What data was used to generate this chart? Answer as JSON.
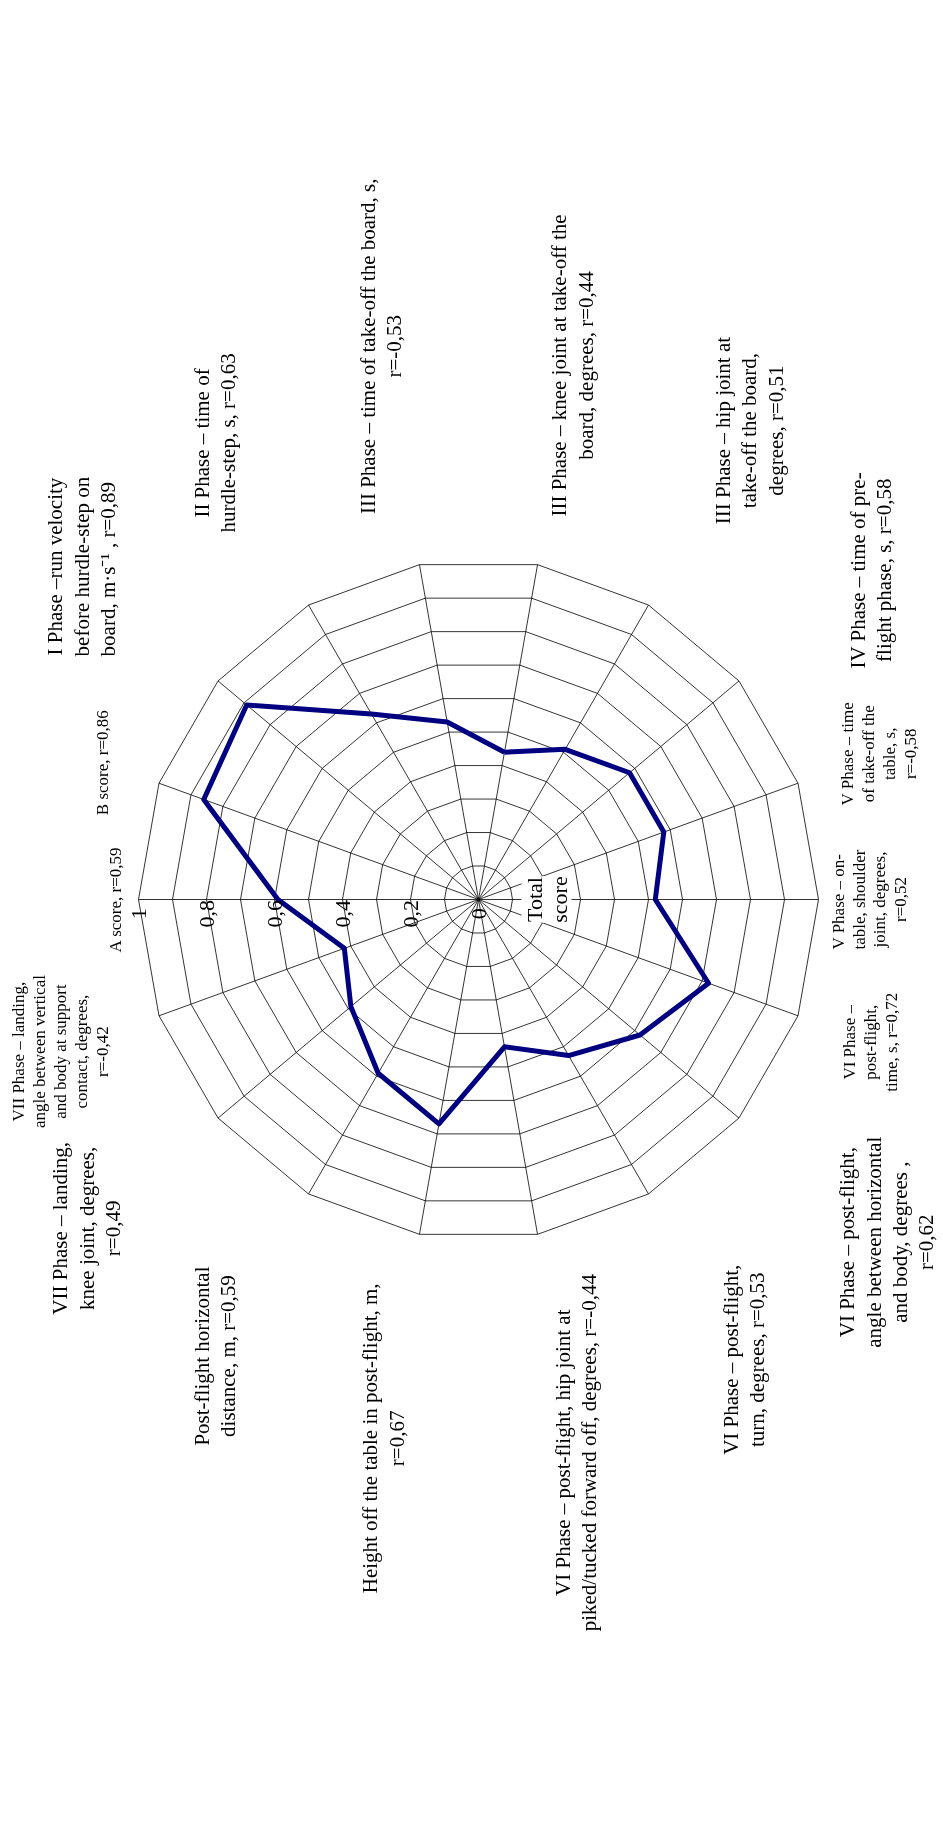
{
  "chart_data": {
    "type": "radar",
    "title": "Total score",
    "categories": [
      "III Phase – knee joint at take-off the board, degrees, r=0,44",
      "III Phase – hip joint at take-off the board, degrees, r=0,51",
      "IV Phase – time of pre-flight phase, s, r=0,58",
      "V Phase – time of take-off the table, s, r=-0,58",
      "V Phase  – on-table, shoulder joint, degrees, r=0,52",
      "VI Phase – post-flight, time, s, r=0,72",
      "VI Phase – post-flight, angle between horizontal and body, degrees , r=0,62",
      "VI Phase – post-flight, turn, degrees, r=0,53",
      "VI Phase – post-flight, hip joint at piked/tucked forward off, degrees, r=-0,44",
      "Height off the table in post-flight, m, r=0,67",
      "Post-flight horizontal distance, m, r=0,59",
      "VII Phase – landing, knee joint, degrees, r=0,49",
      "VII Phase – landing, angle between vertical and body at support contact, degrees, r=-0,42",
      "A score, r=0,59",
      "B score, r=0,86",
      "I Phase –run velocity before hurdle-step on board,  m·s⁻¹ , r=0,89",
      "II Phase – time of hurdle-step, s, r=0,63",
      "III Phase – time of take-off the board, s, r=-0,53"
    ],
    "series": [
      {
        "color": "#000080",
        "values": [
          0.44,
          0.51,
          0.58,
          0.58,
          0.52,
          0.72,
          0.62,
          0.53,
          0.44,
          0.67,
          0.59,
          0.49,
          0.42,
          0.59,
          0.86,
          0.89,
          0.63,
          0.53
        ]
      }
    ],
    "ylim": [
      0,
      1
    ],
    "yticks": [
      {
        "value": 0,
        "label": "0"
      },
      {
        "value": 0.2,
        "label": "0,2"
      },
      {
        "value": 0.4,
        "label": "0,4"
      },
      {
        "value": 0.6,
        "label": "0,6"
      },
      {
        "value": 0.8,
        "label": "0,8"
      },
      {
        "value": 1,
        "label": "1"
      }
    ],
    "grid": true,
    "marker": "none",
    "line_style": "solid"
  }
}
